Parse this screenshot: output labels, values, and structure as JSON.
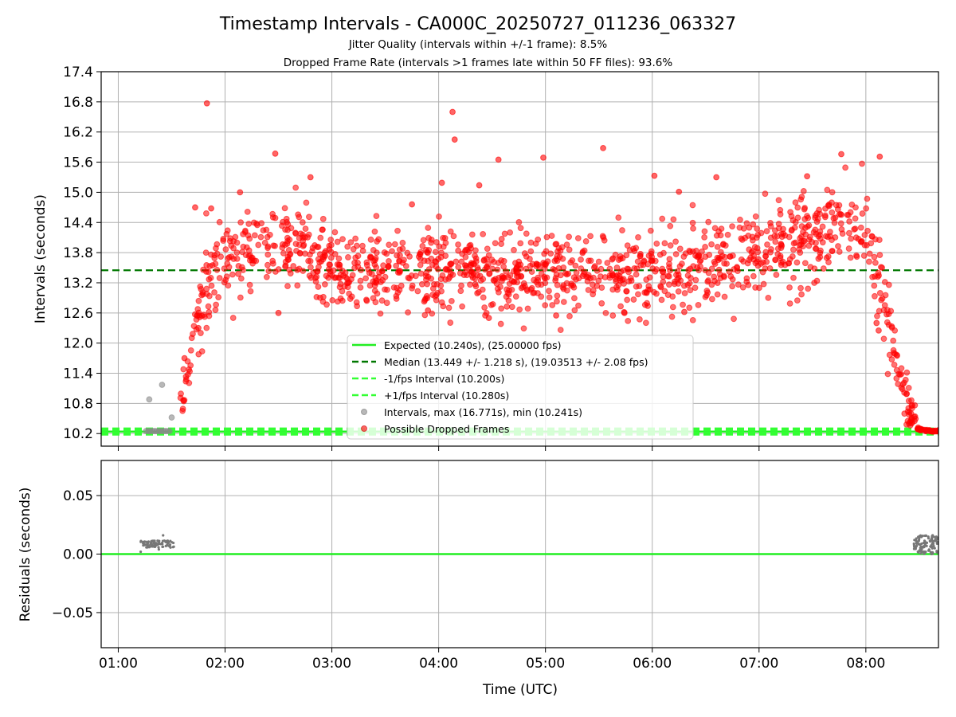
{
  "chart_data": {
    "type": "scatter",
    "title": "Timestamp Intervals - CA000C_20250727_011236_063327",
    "subtitle_1": "Jitter Quality (intervals within +/-1 frame): 8.5%",
    "subtitle_2": "Dropped Frame Rate (intervals >1 frames late within 50 FF files): 93.6%",
    "xlabel": "Time (UTC)",
    "x_ticks": [
      "01:00",
      "02:00",
      "03:00",
      "04:00",
      "05:00",
      "06:00",
      "07:00",
      "08:00"
    ],
    "x_range_hours": [
      0.84,
      8.68
    ],
    "grid": true,
    "top_panel": {
      "ylabel": "Intervals (seconds)",
      "ylim": [
        9.95,
        17.4
      ],
      "y_ticks": [
        "10.2",
        "10.8",
        "11.4",
        "12.0",
        "12.6",
        "13.2",
        "13.8",
        "14.4",
        "15.0",
        "15.6",
        "16.2",
        "16.8",
        "17.4"
      ],
      "lines": {
        "expected": 10.24,
        "median": 13.449,
        "minus_interval": 10.2,
        "plus_interval": 10.28
      },
      "colors": {
        "expected": "#22ee22",
        "median": "#007700",
        "interval": "#33ff33",
        "normal_points": "#888888",
        "dropped_points": "#ff0000"
      },
      "legend": {
        "position": "lower-center",
        "entries": [
          "Expected (10.240s), (25.00000 fps)",
          "Median (13.449 +/- 1.218 s), (19.03513 +/- 2.08 fps)",
          "-1/fps Interval (10.200s)",
          "+1/fps Interval (10.280s)",
          "Intervals, max (16.771s), min (10.241s)",
          "Possible Dropped Frames"
        ]
      },
      "normal_points": [
        [
          1.26,
          10.25
        ],
        [
          1.28,
          10.25
        ],
        [
          1.3,
          10.249
        ],
        [
          1.32,
          10.25
        ],
        [
          1.34,
          10.25
        ],
        [
          1.36,
          10.248
        ],
        [
          1.38,
          10.25
        ],
        [
          1.4,
          10.249
        ],
        [
          1.42,
          10.25
        ],
        [
          1.44,
          10.25
        ],
        [
          1.46,
          10.249
        ],
        [
          1.48,
          10.25
        ],
        [
          1.29,
          10.88
        ],
        [
          1.41,
          11.17
        ],
        [
          1.5,
          10.52
        ]
      ],
      "dropped_outliers": [
        [
          1.83,
          16.77
        ],
        [
          4.13,
          16.6
        ],
        [
          4.15,
          16.05
        ],
        [
          2.47,
          15.77
        ],
        [
          5.54,
          15.88
        ],
        [
          4.56,
          15.65
        ],
        [
          4.98,
          15.69
        ],
        [
          6.02,
          15.33
        ],
        [
          7.77,
          15.76
        ],
        [
          8.13,
          15.71
        ],
        [
          1.72,
          14.7
        ],
        [
          1.87,
          14.68
        ],
        [
          2.14,
          15.0
        ],
        [
          2.8,
          15.3
        ],
        [
          3.75,
          14.76
        ],
        [
          4.03,
          15.19
        ],
        [
          4.38,
          15.14
        ],
        [
          6.25,
          15.01
        ],
        [
          6.6,
          15.3
        ],
        [
          7.45,
          15.32
        ],
        [
          1.62,
          11.7
        ],
        [
          1.75,
          12.3
        ],
        [
          2.5,
          12.6
        ],
        [
          3.9,
          12.65
        ],
        [
          4.47,
          12.5
        ],
        [
          5.1,
          12.55
        ],
        [
          5.74,
          12.6
        ],
        [
          6.3,
          12.62
        ],
        [
          8.1,
          12.4
        ],
        [
          8.12,
          12.25
        ]
      ],
      "dropped_profile_median": [
        [
          1.58,
          10.8
        ],
        [
          1.66,
          11.4
        ],
        [
          1.72,
          12.4
        ],
        [
          1.8,
          13.0
        ],
        [
          1.9,
          13.5
        ],
        [
          2.1,
          13.8
        ],
        [
          2.3,
          13.9
        ],
        [
          2.5,
          14.1
        ],
        [
          2.7,
          13.95
        ],
        [
          2.9,
          13.6
        ],
        [
          3.2,
          13.45
        ],
        [
          3.6,
          13.45
        ],
        [
          4.0,
          13.45
        ],
        [
          4.5,
          13.4
        ],
        [
          5.0,
          13.4
        ],
        [
          5.5,
          13.35
        ],
        [
          6.0,
          13.4
        ],
        [
          6.5,
          13.55
        ],
        [
          6.9,
          13.75
        ],
        [
          7.2,
          13.9
        ],
        [
          7.5,
          14.15
        ],
        [
          7.8,
          14.3
        ],
        [
          8.0,
          14.1
        ],
        [
          8.15,
          13.2
        ],
        [
          8.25,
          12.0
        ],
        [
          8.32,
          11.3
        ],
        [
          8.4,
          10.7
        ],
        [
          8.48,
          10.3
        ],
        [
          8.6,
          10.25
        ],
        [
          8.68,
          10.25
        ]
      ],
      "dropped_spread_sd": 0.42,
      "dropped_count": 1400
    },
    "bottom_panel": {
      "ylabel": "Residuals (seconds)",
      "ylim": [
        -0.08,
        0.08
      ],
      "y_ticks": [
        "−0.05",
        "0.00",
        "0.05"
      ],
      "y_tick_values": [
        -0.05,
        0.0,
        0.05
      ],
      "zero_line_color": "#22ee22",
      "residual_clusters": [
        {
          "x_range": [
            1.21,
            1.52
          ],
          "y_center": 0.0085,
          "y_spread": 0.003,
          "count": 80
        },
        {
          "x_range": [
            8.45,
            8.68
          ],
          "y_center": 0.008,
          "y_spread": 0.008,
          "count": 110
        }
      ],
      "residual_outliers": [
        [
          1.21,
          0.002
        ],
        [
          1.42,
          0.016
        ],
        [
          1.38,
          0.004
        ]
      ]
    }
  }
}
